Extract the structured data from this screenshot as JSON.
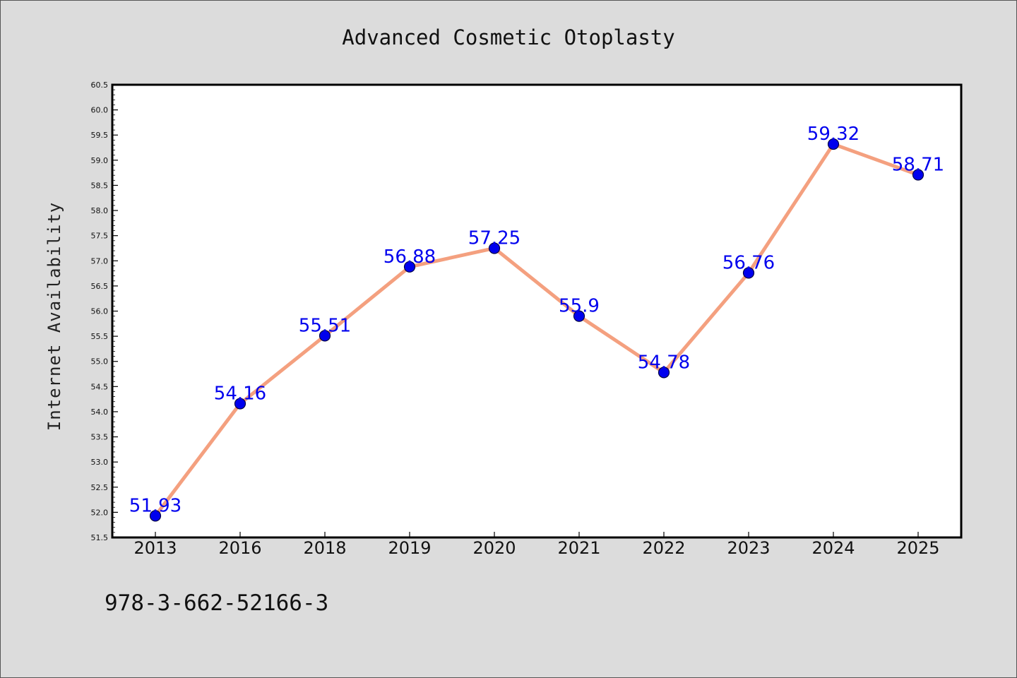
{
  "footer": {
    "code": "978-3-662-52166-3"
  },
  "colors": {
    "line": "#f4a07f",
    "marker": "#0000ee",
    "marker_edge": "#000044",
    "label": "#0000ee"
  },
  "chart_data": {
    "type": "line",
    "title": "Advanced Cosmetic Otoplasty",
    "xlabel": "",
    "ylabel": "Internet Availability",
    "categories": [
      "2013",
      "2016",
      "2018",
      "2019",
      "2020",
      "2021",
      "2022",
      "2023",
      "2024",
      "2025"
    ],
    "values": [
      51.93,
      54.16,
      55.51,
      56.88,
      57.25,
      55.9,
      54.78,
      56.76,
      59.32,
      58.71
    ],
    "data_labels": [
      "51.93",
      "54.16",
      "55.51",
      "56.88",
      "57.25",
      "55.9",
      "54.78",
      "56.76",
      "59.32",
      "58.71"
    ],
    "ylim": [
      51.5,
      60.5
    ],
    "yticks": [
      "51.5",
      "52.0",
      "52.5",
      "53.0",
      "53.5",
      "54.0",
      "54.5",
      "55.0",
      "55.5",
      "56.0",
      "56.5",
      "57.0",
      "57.5",
      "58.0",
      "58.5",
      "59.0",
      "59.5",
      "60.0",
      "60.5"
    ],
    "grid": false,
    "legend": "none"
  }
}
